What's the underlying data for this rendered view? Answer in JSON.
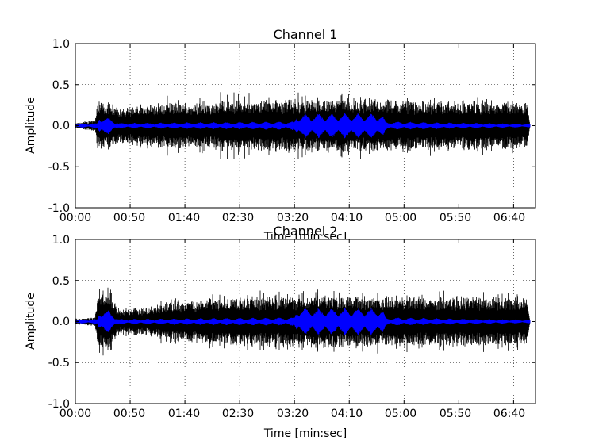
{
  "chart_data": [
    {
      "type": "line",
      "title": "Channel 1",
      "xlabel": "Time [min:sec]",
      "ylabel": "Amplitude",
      "xlim": [
        0,
        420
      ],
      "ylim": [
        -1.0,
        1.0
      ],
      "grid": true,
      "x_tick_labels": [
        "00:00",
        "00:50",
        "01:40",
        "02:30",
        "03:20",
        "04:10",
        "05:00",
        "05:50",
        "06:40"
      ],
      "y_tick_labels": [
        "1.0",
        "0.5",
        "0.0",
        "-0.5",
        "-1.0"
      ],
      "series": [
        {
          "color": "#000000",
          "envelope": [
            {
              "t": 0,
              "a": 0.03
            },
            {
              "t": 18,
              "a": 0.06
            },
            {
              "t": 20,
              "a": 0.28
            },
            {
              "t": 30,
              "a": 0.26
            },
            {
              "t": 45,
              "a": 0.2
            },
            {
              "t": 60,
              "a": 0.25
            },
            {
              "t": 90,
              "a": 0.27
            },
            {
              "t": 120,
              "a": 0.26
            },
            {
              "t": 135,
              "a": 0.31
            },
            {
              "t": 160,
              "a": 0.3
            },
            {
              "t": 200,
              "a": 0.31
            },
            {
              "t": 240,
              "a": 0.31
            },
            {
              "t": 280,
              "a": 0.31
            },
            {
              "t": 320,
              "a": 0.29
            },
            {
              "t": 360,
              "a": 0.29
            },
            {
              "t": 400,
              "a": 0.28
            },
            {
              "t": 412,
              "a": 0.27
            },
            {
              "t": 415,
              "a": 0.03
            }
          ]
        },
        {
          "color": "#0000ff",
          "envelope": [
            {
              "t": 0,
              "a": 0.02
            },
            {
              "t": 20,
              "a": 0.03
            },
            {
              "t": 22,
              "a": 0.12
            },
            {
              "t": 30,
              "a": 0.1
            },
            {
              "t": 40,
              "a": 0.03
            },
            {
              "t": 200,
              "a": 0.05
            },
            {
              "t": 202,
              "a": 0.14
            },
            {
              "t": 280,
              "a": 0.15
            },
            {
              "t": 283,
              "a": 0.05
            },
            {
              "t": 415,
              "a": 0.02
            }
          ]
        }
      ]
    },
    {
      "type": "line",
      "title": "Channel 2",
      "xlabel": "Time [min:sec]",
      "ylabel": "Amplitude",
      "xlim": [
        0,
        420
      ],
      "ylim": [
        -1.0,
        1.0
      ],
      "grid": true,
      "x_tick_labels": [
        "00:00",
        "00:50",
        "01:40",
        "02:30",
        "03:20",
        "04:10",
        "05:00",
        "05:50",
        "06:40"
      ],
      "y_tick_labels": [
        "1.0",
        "0.5",
        "0.0",
        "-0.5",
        "-1.0"
      ],
      "series": [
        {
          "color": "#000000",
          "envelope": [
            {
              "t": 0,
              "a": 0.03
            },
            {
              "t": 18,
              "a": 0.05
            },
            {
              "t": 20,
              "a": 0.3
            },
            {
              "t": 30,
              "a": 0.32
            },
            {
              "t": 40,
              "a": 0.15
            },
            {
              "t": 60,
              "a": 0.16
            },
            {
              "t": 90,
              "a": 0.22
            },
            {
              "t": 120,
              "a": 0.26
            },
            {
              "t": 150,
              "a": 0.28
            },
            {
              "t": 200,
              "a": 0.3
            },
            {
              "t": 240,
              "a": 0.31
            },
            {
              "t": 280,
              "a": 0.3
            },
            {
              "t": 320,
              "a": 0.29
            },
            {
              "t": 360,
              "a": 0.28
            },
            {
              "t": 400,
              "a": 0.28
            },
            {
              "t": 412,
              "a": 0.27
            },
            {
              "t": 415,
              "a": 0.03
            }
          ]
        },
        {
          "color": "#0000ff",
          "envelope": [
            {
              "t": 0,
              "a": 0.02
            },
            {
              "t": 20,
              "a": 0.03
            },
            {
              "t": 22,
              "a": 0.14
            },
            {
              "t": 30,
              "a": 0.14
            },
            {
              "t": 40,
              "a": 0.03
            },
            {
              "t": 200,
              "a": 0.05
            },
            {
              "t": 202,
              "a": 0.16
            },
            {
              "t": 280,
              "a": 0.16
            },
            {
              "t": 283,
              "a": 0.05
            },
            {
              "t": 415,
              "a": 0.02
            }
          ]
        }
      ]
    }
  ]
}
